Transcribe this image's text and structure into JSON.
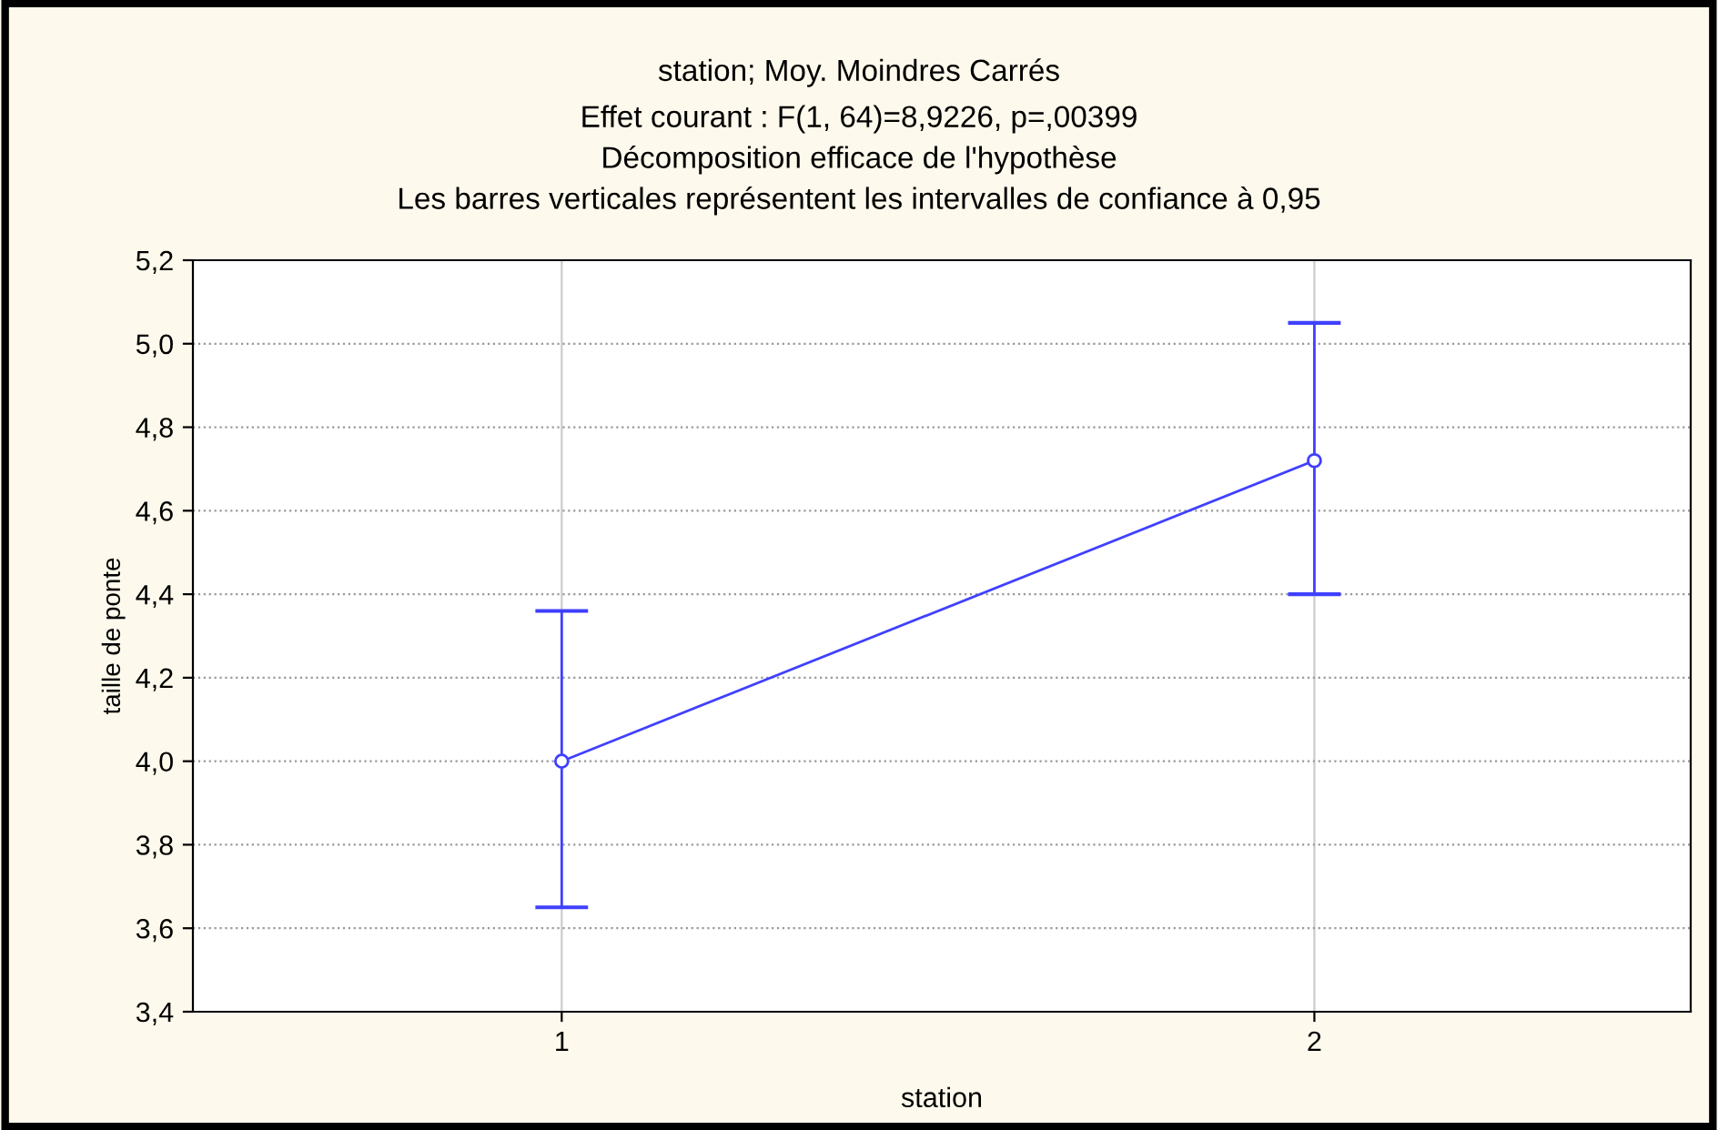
{
  "chart_data": {
    "type": "line",
    "title": "station; Moy. Moindres Carrés",
    "subtitle": "Effet courant : F(1, 64)=8,9226, p=,00399\nDécomposition efficace de l'hypothèse\nLes barres verticales représentent les intervalles de confiance à 0,95",
    "xlabel": "station",
    "ylabel": "taille de ponte",
    "categories": [
      "1",
      "2"
    ],
    "series": [
      {
        "color": "#4040ff",
        "values": [
          4.0,
          4.72
        ],
        "errors": [
          [
            3.65,
            4.36
          ],
          [
            4.4,
            5.05
          ]
        ]
      }
    ],
    "ylim": [
      3.4,
      5.2
    ],
    "yticks": [
      {
        "value": 3.4,
        "label": "3,4"
      },
      {
        "value": 3.6,
        "label": "3,6"
      },
      {
        "value": 3.8,
        "label": "3,8"
      },
      {
        "value": 4.0,
        "label": "4,0"
      },
      {
        "value": 4.2,
        "label": "4,2"
      },
      {
        "value": 4.4,
        "label": "4,4"
      },
      {
        "value": 4.6,
        "label": "4,6"
      },
      {
        "value": 4.8,
        "label": "4,8"
      },
      {
        "value": 5.0,
        "label": "5,0"
      },
      {
        "value": 5.2,
        "label": "5,2"
      }
    ],
    "grid": true,
    "marker": "circle",
    "line_style": "solid"
  }
}
